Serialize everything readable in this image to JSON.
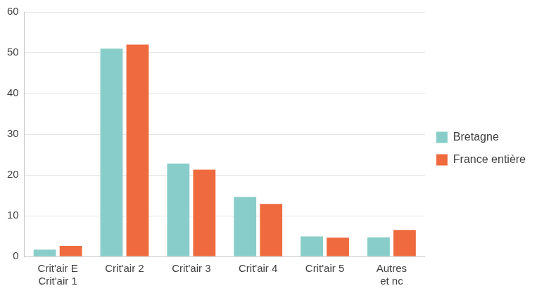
{
  "chart_data": {
    "type": "bar",
    "categories": [
      [
        "Crit'air E",
        "Crit'air 1"
      ],
      "Crit'air 2",
      "Crit'air 3",
      "Crit'air 4",
      "Crit'air 5",
      [
        "Autres",
        "et nc"
      ]
    ],
    "series": [
      {
        "name": "Bretagne",
        "color": "#88cdc9",
        "values": [
          1.7,
          51,
          22.8,
          14.6,
          4.9,
          4.7
        ]
      },
      {
        "name": "France entière",
        "color": "#ef6a3e",
        "values": [
          2.6,
          52,
          21.3,
          12.9,
          4.6,
          6.5
        ]
      }
    ],
    "ylim": [
      0,
      60
    ],
    "yticks": [
      0,
      10,
      20,
      30,
      40,
      50,
      60
    ],
    "grid": true,
    "legend": "right"
  }
}
